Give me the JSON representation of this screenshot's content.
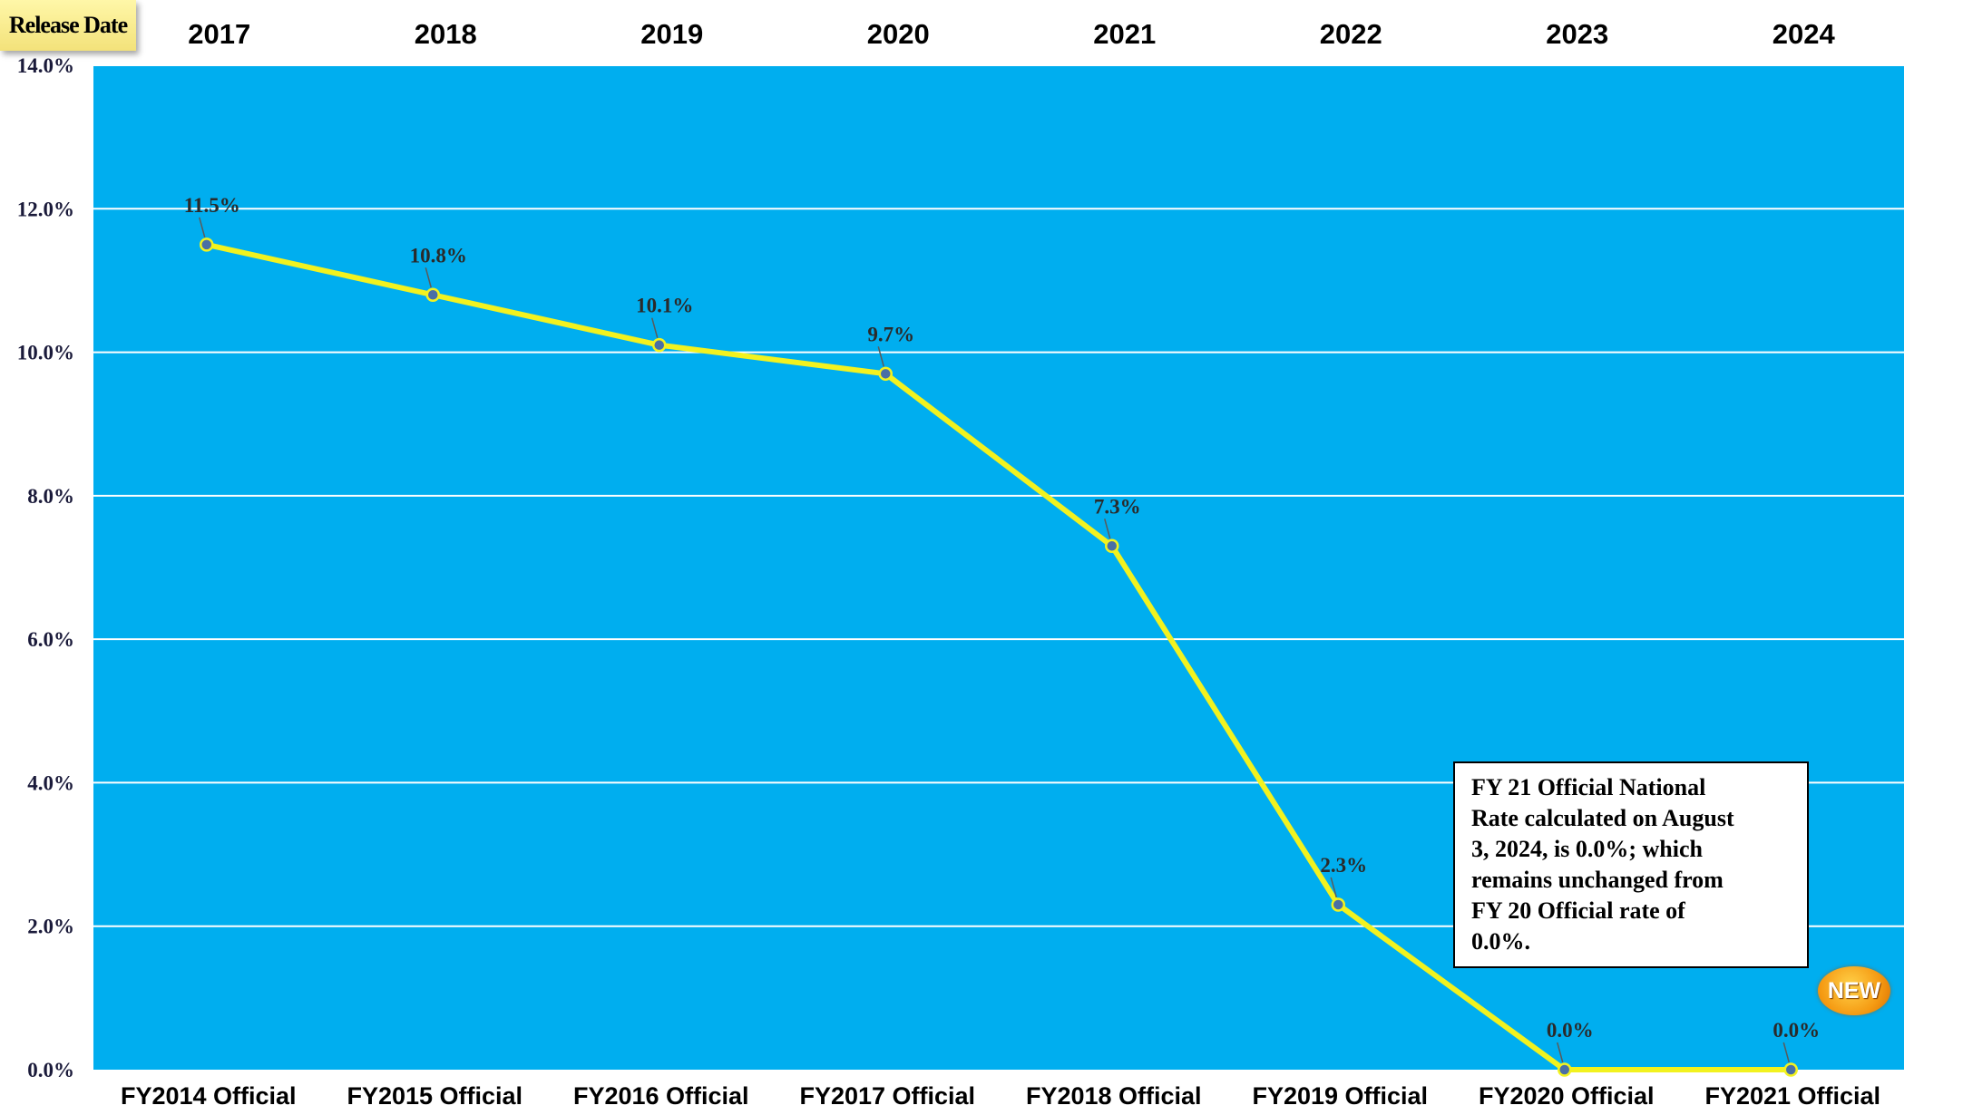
{
  "release_badge": "Release Date",
  "chart_data": {
    "type": "line",
    "categories": [
      "FY2014 Official",
      "FY2015 Official",
      "FY2016 Official",
      "FY2017 Official",
      "FY2018 Official",
      "FY2019 Official",
      "FY2020 Official",
      "FY2021  Official"
    ],
    "release_years": [
      "2017",
      "2018",
      "2019",
      "2020",
      "2021",
      "2022",
      "2023",
      "2024"
    ],
    "values": [
      11.5,
      10.8,
      10.1,
      9.7,
      7.3,
      2.3,
      0.0,
      0.0
    ],
    "data_labels": [
      "11.5%",
      "10.8%",
      "10.1%",
      "9.7%",
      "7.3%",
      "2.3%",
      "0.0%",
      "0.0%"
    ],
    "y_ticks": [
      "0.0%",
      "2.0%",
      "4.0%",
      "6.0%",
      "8.0%",
      "10.0%",
      "12.0%",
      "14.0%"
    ],
    "ylim": [
      0,
      14
    ],
    "grid": true,
    "colors": {
      "plot_background": "#00AEEF",
      "line": "#F2F21F",
      "marker_fill": "#4A6FA5",
      "gridline": "#FFFFFF"
    }
  },
  "annotation": {
    "lines": [
      "FY 21 Official National",
      "Rate calculated on August",
      "3, 2024, is 0.0%; which",
      "remains unchanged from",
      "FY 20 Official rate of",
      "0.0%."
    ]
  },
  "new_badge": "NEW"
}
